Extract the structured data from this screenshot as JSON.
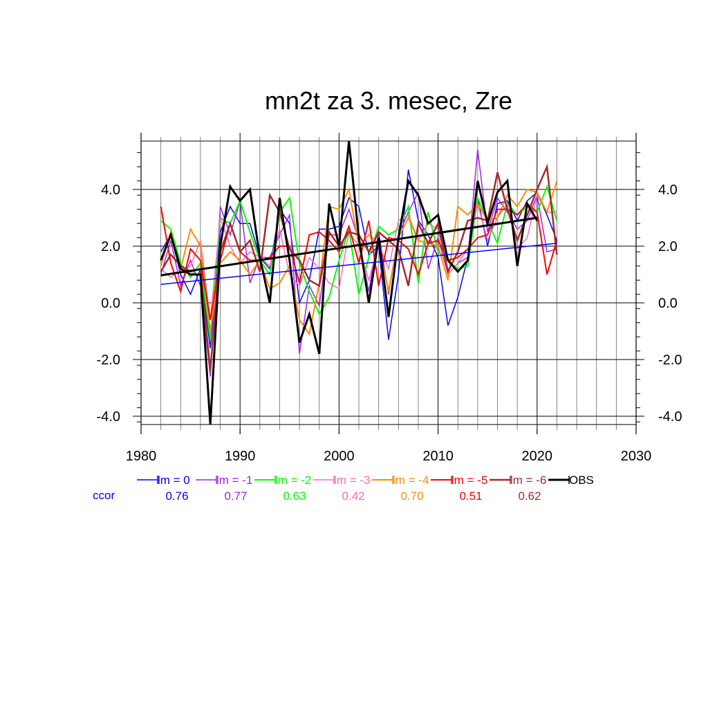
{
  "chart_data": {
    "type": "line",
    "title": "mn2t za 3. mesec, Zre",
    "xlabel": "",
    "ylabel": "",
    "xlim": [
      1980,
      2030
    ],
    "ylim": [
      -4.3,
      5.7
    ],
    "x_ticks": [
      "1980",
      "1990",
      "2000",
      "2010",
      "2020",
      "2030"
    ],
    "y_ticks": [
      "4.0",
      "2.0",
      "0.0",
      "-2.0",
      "-4.0"
    ],
    "grid": true,
    "legend_position": "bottom",
    "ccor_label": "ccor",
    "years": [
      1982,
      1983,
      1984,
      1985,
      1986,
      1987,
      1988,
      1989,
      1990,
      1991,
      1992,
      1993,
      1994,
      1995,
      1996,
      1997,
      1998,
      1999,
      2000,
      2001,
      2002,
      2003,
      2004,
      2005,
      2006,
      2007,
      2008,
      2009,
      2010,
      2011,
      2012,
      2013,
      2014,
      2015,
      2016,
      2017,
      2018,
      2019,
      2020,
      2021,
      2022
    ],
    "series": [
      {
        "name": "lm = 0",
        "ccor": "0.76",
        "color": "#0000ff",
        "width": 1.5,
        "values": [
          1.8,
          2.4,
          1.0,
          0.3,
          1.2,
          -1.6,
          2.5,
          3.4,
          2.8,
          2.8,
          1.6,
          1.2,
          3.3,
          2.8,
          0.0,
          0.8,
          2.6,
          2.6,
          2.7,
          3.7,
          3.4,
          1.7,
          2.0,
          -1.3,
          1.0,
          4.7,
          2.9,
          2.4,
          1.6,
          -0.8,
          0.2,
          1.6,
          3.7,
          2.0,
          3.5,
          3.6,
          2.9,
          3.6,
          3.9,
          3.1,
          2.2
        ]
      },
      {
        "name": "lm = -1",
        "ccor": "0.77",
        "color": "#a020f0",
        "width": 1.5,
        "values": [
          1.0,
          2.2,
          0.6,
          1.5,
          0.6,
          -2.6,
          3.4,
          2.4,
          3.6,
          0.7,
          1.6,
          1.6,
          2.4,
          3.1,
          -1.8,
          0.6,
          -0.1,
          2.4,
          2.4,
          3.3,
          2.2,
          0.4,
          2.5,
          0.3,
          2.4,
          3.2,
          3.9,
          1.2,
          2.3,
          1.0,
          1.4,
          1.6,
          5.4,
          2.5,
          3.7,
          3.2,
          2.6,
          2.9,
          3.8,
          1.8,
          1.9
        ]
      },
      {
        "name": "lm = -2",
        "ccor": "0.63",
        "color": "#00ff00",
        "width": 2,
        "values": [
          2.9,
          2.6,
          1.4,
          0.9,
          1.4,
          -1.3,
          3.0,
          2.8,
          3.6,
          2.5,
          1.5,
          1.0,
          3.2,
          3.7,
          1.4,
          0.4,
          -0.4,
          0.2,
          1.5,
          2.6,
          0.3,
          1.6,
          2.7,
          2.4,
          2.6,
          3.4,
          0.7,
          3.2,
          1.8,
          1.5,
          1.2,
          1.3,
          3.7,
          2.9,
          2.1,
          3.5,
          3.1,
          3.4,
          3.2,
          4.1,
          2.9
        ]
      },
      {
        "name": "lm = -3",
        "ccor": "0.42",
        "color": "#ff69b4",
        "width": 1.5,
        "values": [
          1.2,
          0.9,
          1.2,
          1.3,
          2.2,
          -0.6,
          3.0,
          2.0,
          1.4,
          1.8,
          1.6,
          1.3,
          2.6,
          1.0,
          0.6,
          1.6,
          1.2,
          0.7,
          0.5,
          2.5,
          2.0,
          0.8,
          2.1,
          1.2,
          2.9,
          3.1,
          2.2,
          2.8,
          2.6,
          1.0,
          1.4,
          1.9,
          3.5,
          2.2,
          3.0,
          3.5,
          1.9,
          2.3,
          3.8,
          3.2,
          3.2
        ]
      },
      {
        "name": "lm = -4",
        "ccor": "0.70",
        "color": "#ff8c00",
        "width": 2,
        "values": [
          1.3,
          2.5,
          1.2,
          2.6,
          2.0,
          -1.0,
          1.4,
          1.8,
          1.5,
          1.0,
          1.5,
          0.5,
          0.7,
          1.3,
          -0.6,
          -1.1,
          0.7,
          3.4,
          3.3,
          4.0,
          2.0,
          2.4,
          2.1,
          0.4,
          2.3,
          3.0,
          2.2,
          2.1,
          2.0,
          0.8,
          3.4,
          3.1,
          3.5,
          2.9,
          3.0,
          3.8,
          3.4,
          4.0,
          3.9,
          3.2,
          4.3
        ]
      },
      {
        "name": "lm = -5",
        "ccor": "0.51",
        "color": "#ff0000",
        "width": 2,
        "values": [
          3.4,
          1.4,
          0.4,
          1.9,
          1.5,
          -0.6,
          1.5,
          2.8,
          1.8,
          1.5,
          1.5,
          1.6,
          2.0,
          2.0,
          0.7,
          2.4,
          2.5,
          2.2,
          1.8,
          2.7,
          1.4,
          2.9,
          0.6,
          2.3,
          2.2,
          1.9,
          1.0,
          2.1,
          2.2,
          1.5,
          1.6,
          1.9,
          2.3,
          2.4,
          3.3,
          3.3,
          3.1,
          3.5,
          3.2,
          1.0,
          2.2
        ]
      },
      {
        "name": "lm = -6",
        "ccor": "0.62",
        "color": "#a52a2a",
        "width": 2.5,
        "values": [
          1.1,
          1.7,
          1.3,
          1.1,
          1.2,
          -2.4,
          1.8,
          2.8,
          1.8,
          2.2,
          1.1,
          3.8,
          3.2,
          1.9,
          1.5,
          0.8,
          0.6,
          2.5,
          2.0,
          2.5,
          2.4,
          1.8,
          2.5,
          2.2,
          1.9,
          0.6,
          2.8,
          2.1,
          2.8,
          1.1,
          1.8,
          2.9,
          3.0,
          2.9,
          4.6,
          3.3,
          2.2,
          3.1,
          4.0,
          4.8,
          1.7
        ]
      },
      {
        "name": "OBS",
        "ccor": "",
        "color": "#000000",
        "width": 3,
        "values": [
          1.5,
          2.4,
          1.2,
          1.0,
          1.0,
          -4.3,
          2.0,
          4.1,
          3.6,
          4.0,
          1.6,
          0.0,
          3.7,
          1.5,
          -1.4,
          -0.4,
          -1.8,
          3.5,
          2.0,
          5.7,
          2.3,
          0.0,
          2.3,
          -0.5,
          2.3,
          4.3,
          3.8,
          2.8,
          3.1,
          1.5,
          1.1,
          1.5,
          4.3,
          2.8,
          3.9,
          4.3,
          1.3,
          3.5,
          2.9,
          null,
          null
        ]
      }
    ],
    "trend_lines": [
      {
        "color": "#0000ff",
        "width": 1.5,
        "from": [
          1982,
          0.65
        ],
        "to": [
          2022,
          2.1
        ]
      },
      {
        "color": "#000000",
        "width": 3,
        "from": [
          1982,
          0.97
        ],
        "to": [
          2020,
          3.0
        ]
      }
    ]
  }
}
